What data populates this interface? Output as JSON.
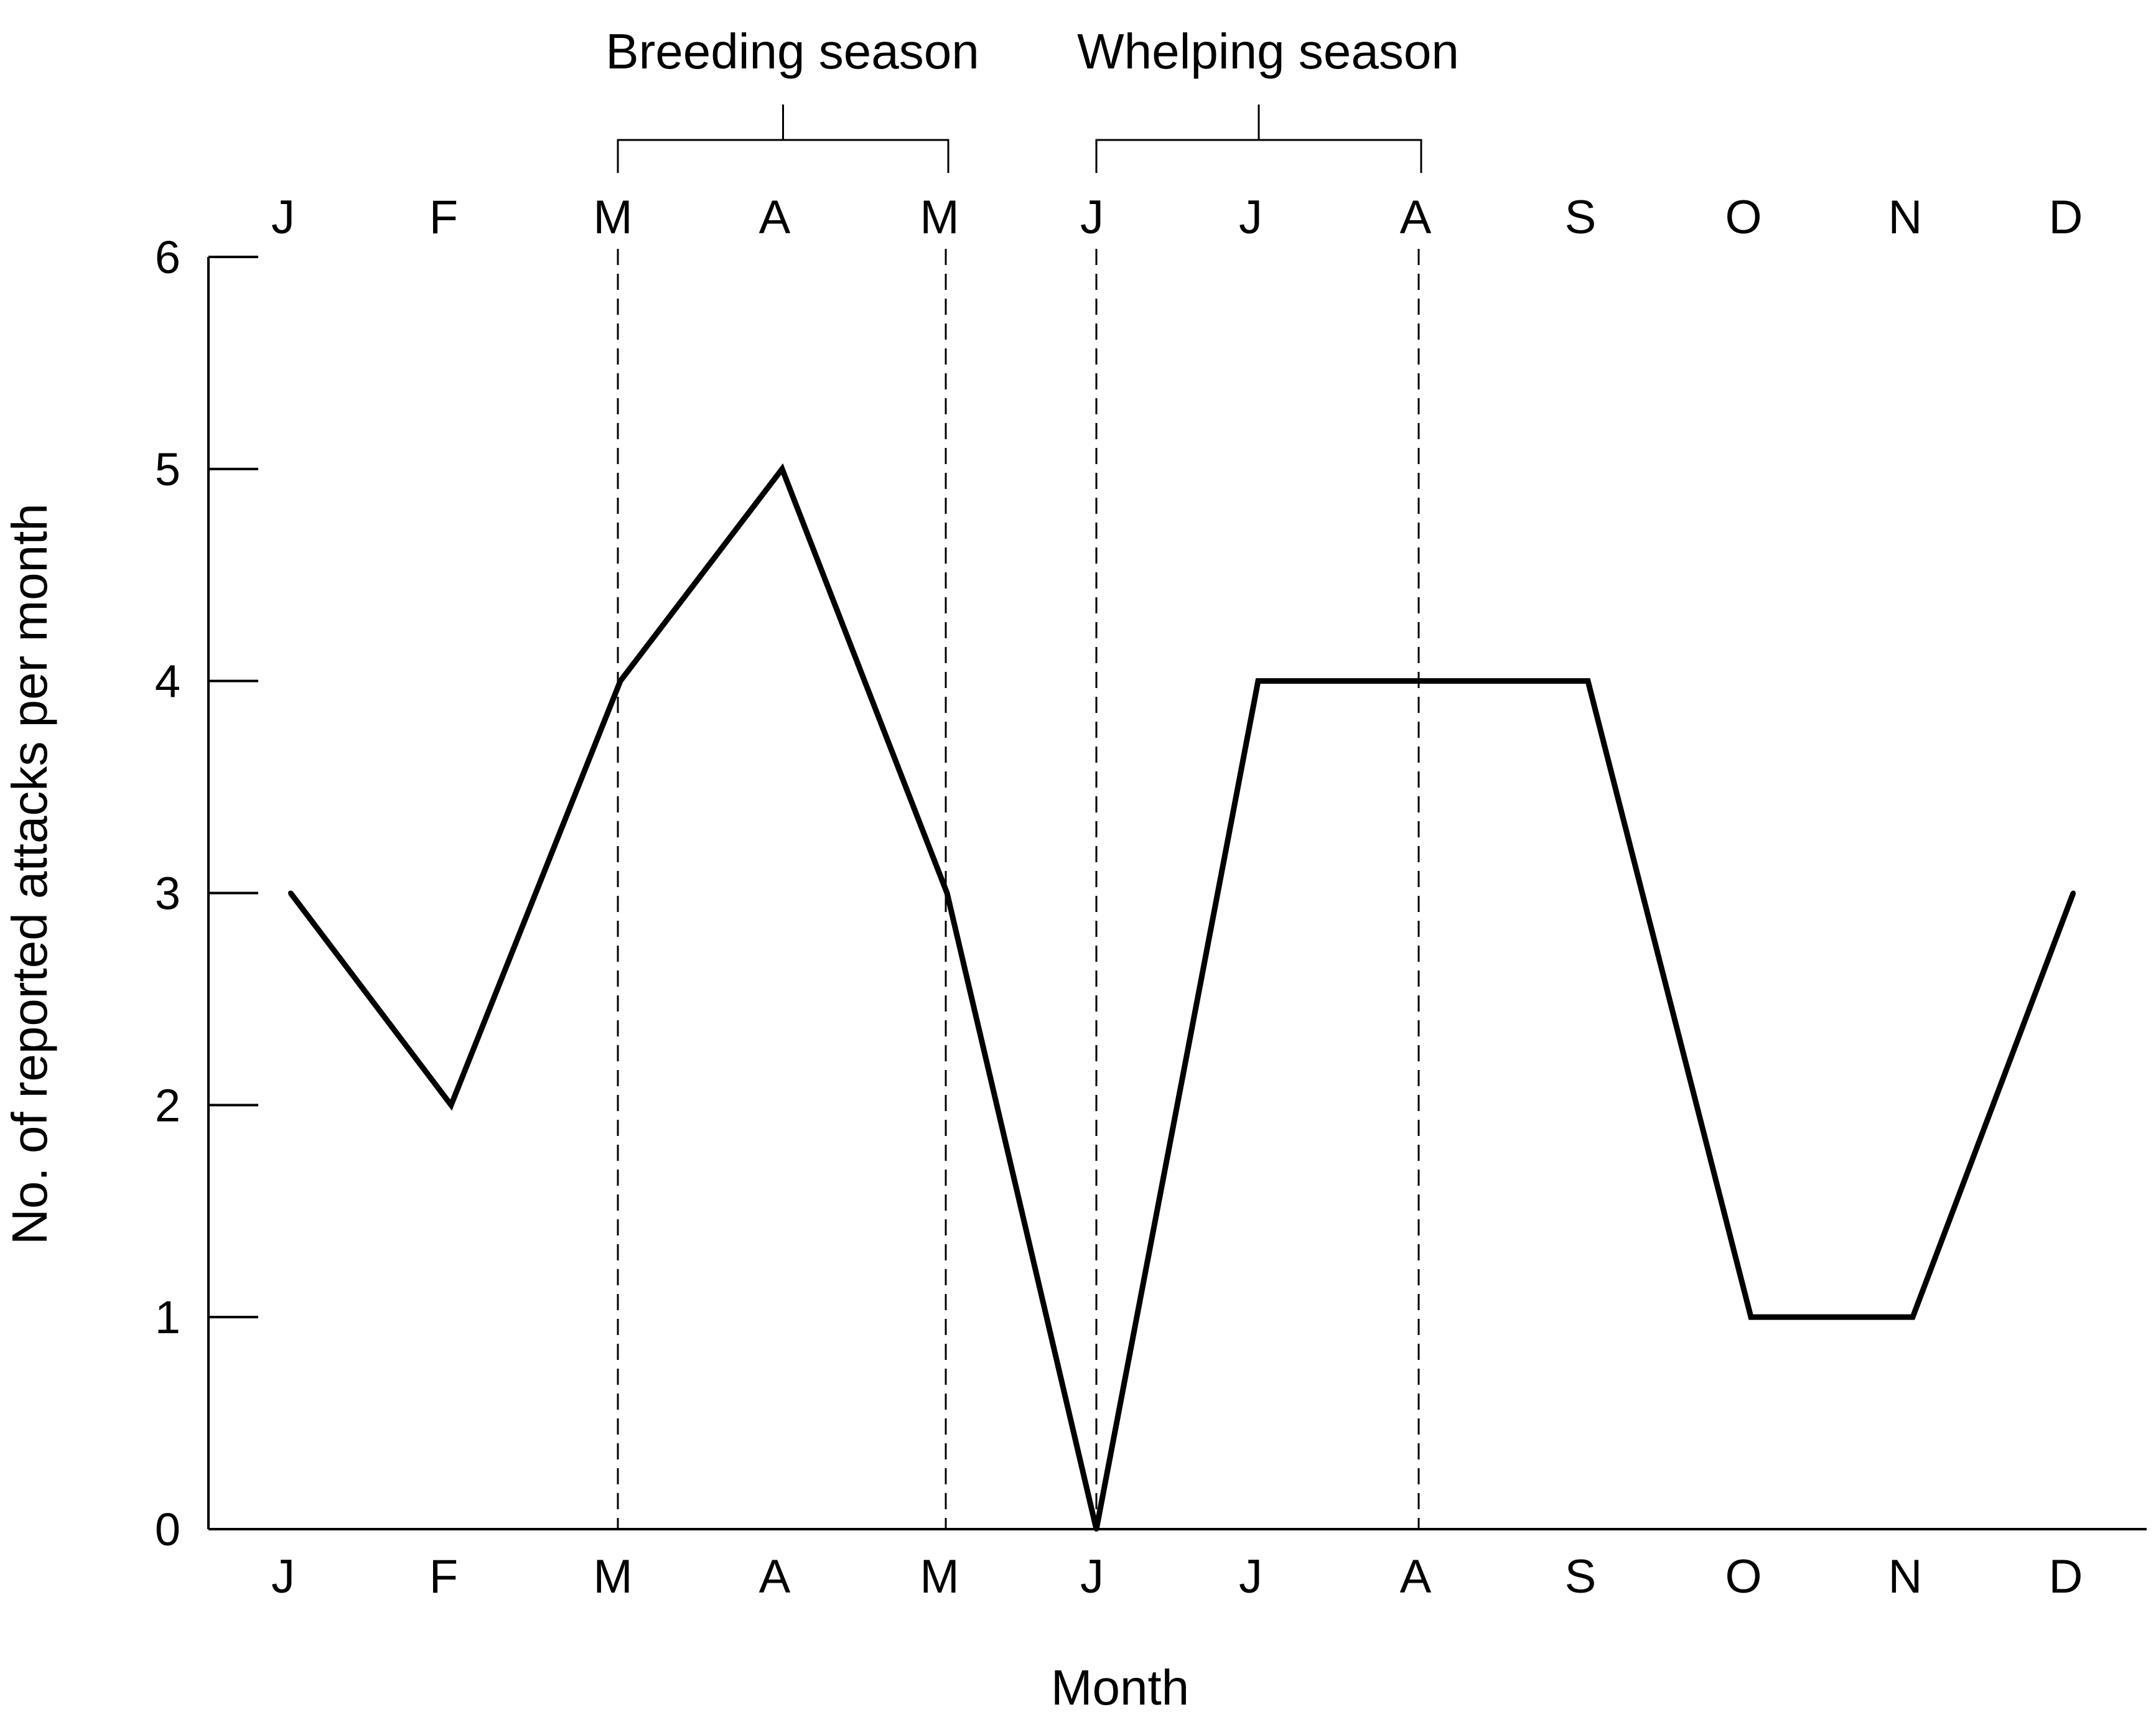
{
  "chart_data": {
    "type": "line",
    "categories": [
      "J",
      "F",
      "M",
      "A",
      "M",
      "J",
      "J",
      "A",
      "S",
      "O",
      "N",
      "D"
    ],
    "values": [
      3,
      2,
      4,
      5,
      3,
      0,
      4,
      4,
      4,
      1,
      1,
      3
    ],
    "title": "",
    "xlabel": "Month",
    "ylabel": "No. of reported attacks per month",
    "ylim": [
      0,
      6
    ],
    "yticks": [
      0,
      1,
      2,
      3,
      4,
      5,
      6
    ],
    "grid": false,
    "legend": "none",
    "line_color": "#000000",
    "annotations": [
      {
        "label": "Breeding season",
        "from": 2,
        "to": 4
      },
      {
        "label": "Whelping season",
        "from": 5,
        "to": 7
      }
    ]
  }
}
